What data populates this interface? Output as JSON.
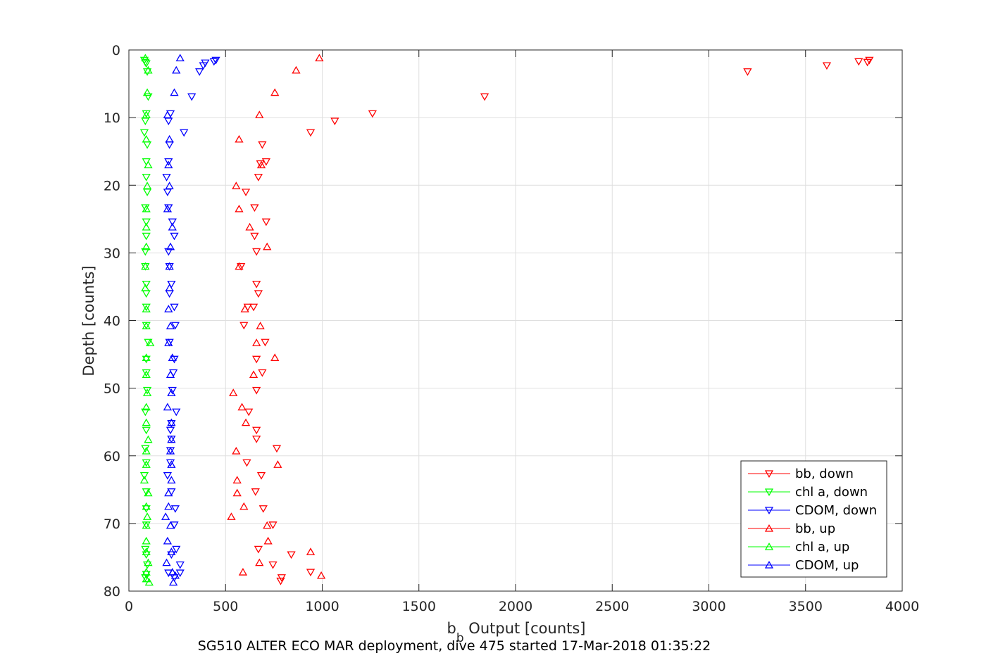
{
  "chart_data": {
    "type": "scatter",
    "caption": "SG510 ALTER ECO MAR deployment, dive 475 started 17-Mar-2018 01:35:22",
    "xlabel_main": "b",
    "xlabel_sub": "b",
    "xlabel_rest": " Output [counts]",
    "ylabel": "Depth [counts]",
    "xlim": [
      0,
      4000
    ],
    "ylim": [
      0,
      80
    ],
    "y_reversed": true,
    "grid": true,
    "legend_position": "lower-right",
    "x_ticks": [
      0,
      500,
      1000,
      1500,
      2000,
      2500,
      3000,
      3500,
      4000
    ],
    "y_ticks": [
      0,
      10,
      20,
      30,
      40,
      50,
      60,
      70,
      80
    ],
    "series": [
      {
        "name": "bb, down",
        "color": "#ff0000",
        "marker": "triangle-down",
        "points": [
          [
            3830,
            1.5
          ],
          [
            3820,
            1.8
          ],
          [
            3775,
            1.7
          ],
          [
            3610,
            2.3
          ],
          [
            3200,
            3.2
          ],
          [
            1840,
            6.9
          ],
          [
            1260,
            9.4
          ],
          [
            1065,
            10.5
          ],
          [
            940,
            12.2
          ],
          [
            690,
            14
          ],
          [
            710,
            16.5
          ],
          [
            680,
            16.8
          ],
          [
            670,
            18.8
          ],
          [
            605,
            21
          ],
          [
            650,
            23.3
          ],
          [
            710,
            25.4
          ],
          [
            650,
            27.5
          ],
          [
            660,
            29.8
          ],
          [
            580,
            32
          ],
          [
            660,
            34.6
          ],
          [
            670,
            36
          ],
          [
            615,
            38
          ],
          [
            645,
            38
          ],
          [
            595,
            40.7
          ],
          [
            705,
            43.2
          ],
          [
            660,
            45.7
          ],
          [
            690,
            47.7
          ],
          [
            660,
            50.3
          ],
          [
            620,
            53.5
          ],
          [
            660,
            56.2
          ],
          [
            660,
            57.5
          ],
          [
            765,
            58.9
          ],
          [
            610,
            61
          ],
          [
            685,
            62.9
          ],
          [
            655,
            65.3
          ],
          [
            695,
            67.8
          ],
          [
            745,
            70.2
          ],
          [
            670,
            73.8
          ],
          [
            840,
            74.6
          ],
          [
            745,
            76.1
          ],
          [
            940,
            77.2
          ],
          [
            790,
            78
          ],
          [
            785,
            78.5
          ]
        ]
      },
      {
        "name": "chl a, down",
        "color": "#00ff00",
        "marker": "triangle-down",
        "points": [
          [
            80,
            1.5
          ],
          [
            85,
            1.8
          ],
          [
            90,
            2
          ],
          [
            95,
            3.2
          ],
          [
            100,
            6.9
          ],
          [
            90,
            9.4
          ],
          [
            85,
            10.5
          ],
          [
            80,
            12.2
          ],
          [
            95,
            14
          ],
          [
            90,
            16.5
          ],
          [
            90,
            18.8
          ],
          [
            95,
            21
          ],
          [
            85,
            23.3
          ],
          [
            90,
            25.4
          ],
          [
            90,
            27.5
          ],
          [
            85,
            29.8
          ],
          [
            85,
            32
          ],
          [
            90,
            34.6
          ],
          [
            90,
            36
          ],
          [
            90,
            38
          ],
          [
            90,
            40.7
          ],
          [
            100,
            43.2
          ],
          [
            90,
            45.7
          ],
          [
            90,
            47.7
          ],
          [
            95,
            50.3
          ],
          [
            85,
            53.5
          ],
          [
            90,
            56.2
          ],
          [
            85,
            58.9
          ],
          [
            90,
            61
          ],
          [
            80,
            62.9
          ],
          [
            90,
            65.3
          ],
          [
            90,
            67.8
          ],
          [
            90,
            70.2
          ],
          [
            85,
            73.8
          ],
          [
            90,
            74.6
          ],
          [
            95,
            76.1
          ],
          [
            90,
            77.5
          ],
          [
            85,
            78
          ]
        ]
      },
      {
        "name": "CDOM, down",
        "color": "#0000ff",
        "marker": "triangle-down",
        "points": [
          [
            450,
            1.5
          ],
          [
            440,
            1.7
          ],
          [
            395,
            1.9
          ],
          [
            385,
            2.3
          ],
          [
            365,
            3.2
          ],
          [
            325,
            6.9
          ],
          [
            215,
            9.4
          ],
          [
            205,
            10.5
          ],
          [
            285,
            12.2
          ],
          [
            210,
            14
          ],
          [
            205,
            16.5
          ],
          [
            195,
            18.8
          ],
          [
            200,
            21
          ],
          [
            205,
            23.3
          ],
          [
            225,
            25.4
          ],
          [
            235,
            27.5
          ],
          [
            205,
            29.8
          ],
          [
            210,
            32
          ],
          [
            220,
            34.6
          ],
          [
            210,
            36
          ],
          [
            235,
            38
          ],
          [
            240,
            40.7
          ],
          [
            210,
            43.2
          ],
          [
            235,
            45.7
          ],
          [
            230,
            47.7
          ],
          [
            225,
            50.3
          ],
          [
            245,
            53.5
          ],
          [
            220,
            55.2
          ],
          [
            215,
            56.2
          ],
          [
            220,
            57.5
          ],
          [
            215,
            59.2
          ],
          [
            215,
            61
          ],
          [
            200,
            62.9
          ],
          [
            220,
            65.3
          ],
          [
            240,
            67.8
          ],
          [
            235,
            70.2
          ],
          [
            245,
            73.8
          ],
          [
            220,
            74.6
          ],
          [
            265,
            76.1
          ],
          [
            205,
            77.3
          ],
          [
            265,
            77.3
          ],
          [
            235,
            78
          ]
        ]
      },
      {
        "name": "bb, up",
        "color": "#ff0000",
        "marker": "triangle-up",
        "points": [
          [
            985,
            1.2
          ],
          [
            865,
            3
          ],
          [
            755,
            6.3
          ],
          [
            675,
            9.6
          ],
          [
            570,
            13.2
          ],
          [
            685,
            17
          ],
          [
            555,
            20.1
          ],
          [
            570,
            23.5
          ],
          [
            625,
            26.2
          ],
          [
            715,
            29.1
          ],
          [
            570,
            32
          ],
          [
            600,
            38.3
          ],
          [
            680,
            40.8
          ],
          [
            660,
            43.3
          ],
          [
            755,
            45.5
          ],
          [
            645,
            48
          ],
          [
            540,
            50.7
          ],
          [
            585,
            52.8
          ],
          [
            605,
            55.1
          ],
          [
            555,
            59.3
          ],
          [
            770,
            61.3
          ],
          [
            560,
            63.6
          ],
          [
            560,
            65.5
          ],
          [
            595,
            67.5
          ],
          [
            530,
            69
          ],
          [
            715,
            70.3
          ],
          [
            720,
            72.6
          ],
          [
            940,
            74.2
          ],
          [
            675,
            75.8
          ],
          [
            590,
            77.2
          ],
          [
            995,
            77.7
          ]
        ]
      },
      {
        "name": "chl a, up",
        "color": "#00ff00",
        "marker": "triangle-up",
        "points": [
          [
            85,
            1.2
          ],
          [
            100,
            3
          ],
          [
            95,
            6.3
          ],
          [
            90,
            9.6
          ],
          [
            90,
            13.2
          ],
          [
            100,
            17
          ],
          [
            95,
            20.1
          ],
          [
            90,
            23.5
          ],
          [
            90,
            26.2
          ],
          [
            90,
            29.1
          ],
          [
            85,
            32
          ],
          [
            85,
            35.2
          ],
          [
            90,
            38.3
          ],
          [
            90,
            40.8
          ],
          [
            110,
            43.3
          ],
          [
            90,
            45.5
          ],
          [
            90,
            48
          ],
          [
            95,
            50.7
          ],
          [
            90,
            52.8
          ],
          [
            90,
            55.1
          ],
          [
            100,
            57.6
          ],
          [
            90,
            59.3
          ],
          [
            90,
            61.3
          ],
          [
            80,
            63.6
          ],
          [
            100,
            65.5
          ],
          [
            90,
            67.5
          ],
          [
            95,
            69
          ],
          [
            90,
            70.3
          ],
          [
            90,
            72.6
          ],
          [
            90,
            74.2
          ],
          [
            100,
            75.8
          ],
          [
            90,
            77.2
          ],
          [
            90,
            78.2
          ],
          [
            105,
            78.7
          ]
        ]
      },
      {
        "name": "CDOM, up",
        "color": "#0000ff",
        "marker": "triangle-up",
        "points": [
          [
            265,
            1.2
          ],
          [
            245,
            3
          ],
          [
            235,
            6.3
          ],
          [
            200,
            9.6
          ],
          [
            210,
            13.2
          ],
          [
            205,
            17
          ],
          [
            210,
            20.1
          ],
          [
            200,
            23.5
          ],
          [
            225,
            26.2
          ],
          [
            215,
            29.1
          ],
          [
            210,
            32
          ],
          [
            210,
            35.2
          ],
          [
            205,
            38.3
          ],
          [
            215,
            40.8
          ],
          [
            205,
            43.3
          ],
          [
            225,
            45.5
          ],
          [
            215,
            48
          ],
          [
            220,
            50.7
          ],
          [
            200,
            52.8
          ],
          [
            220,
            55.1
          ],
          [
            220,
            57.6
          ],
          [
            215,
            59.3
          ],
          [
            220,
            61.3
          ],
          [
            220,
            63.6
          ],
          [
            205,
            65.5
          ],
          [
            205,
            67.5
          ],
          [
            190,
            69
          ],
          [
            215,
            70.3
          ],
          [
            200,
            72.6
          ],
          [
            220,
            74.2
          ],
          [
            195,
            75.8
          ],
          [
            225,
            77.2
          ],
          [
            240,
            77.7
          ],
          [
            230,
            78.7
          ]
        ]
      }
    ]
  }
}
